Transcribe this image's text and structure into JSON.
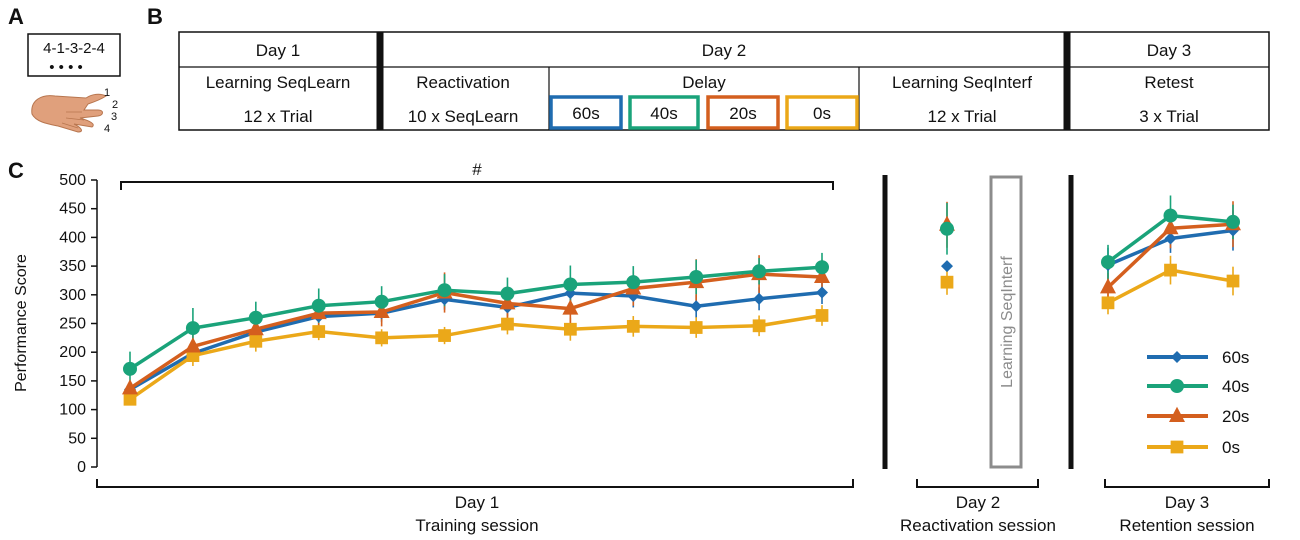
{
  "panel_a": {
    "letter": "A",
    "sequence": "4-1-3-2-4",
    "dots": "• • • •",
    "finger_numbers": [
      "1",
      "2",
      "3",
      "4"
    ]
  },
  "panel_b": {
    "letter": "B",
    "day1": {
      "header": "Day 1",
      "row1": "Learning SeqLearn",
      "row2": "12 x Trial"
    },
    "day2": {
      "header": "Day 2",
      "reactivation": {
        "row1": "Reactivation",
        "row2": "10 x SeqLearn"
      },
      "delay": {
        "label": "Delay",
        "boxes": [
          {
            "label": "60s",
            "color": "#1f6cb0"
          },
          {
            "label": "40s",
            "color": "#1aa37a"
          },
          {
            "label": "20s",
            "color": "#d45f1e"
          },
          {
            "label": "0s",
            "color": "#eba819"
          }
        ]
      },
      "interf": {
        "row1": "Learning SeqInterf",
        "row2": "12 x Trial"
      }
    },
    "day3": {
      "header": "Day 3",
      "row1": "Retest",
      "row2": "3 x Trial"
    }
  },
  "panel_c": {
    "letter": "C",
    "significance_mark": "#",
    "interf_box_label": "Learning SeqInterf",
    "brackets": [
      {
        "line1": "Day 1",
        "line2": "Training session"
      },
      {
        "line1": "Day 2",
        "line2": "Reactivation session"
      },
      {
        "line1": "Day 3",
        "line2": "Retention session"
      }
    ]
  },
  "chart_data": {
    "type": "line",
    "ylabel": "Performance Score",
    "ylim": [
      0,
      500
    ],
    "yticks": [
      0,
      50,
      100,
      150,
      200,
      250,
      300,
      350,
      400,
      450,
      500
    ],
    "segments": {
      "training": {
        "trials": 12
      },
      "reactivation": {
        "trials": 1
      },
      "retention": {
        "trials": 3
      }
    },
    "series": [
      {
        "name": "60s",
        "color": "#1f6cb0",
        "marker": "diamond",
        "training": [
          135,
          198,
          235,
          262,
          268,
          292,
          278,
          303,
          298,
          280,
          293,
          304
        ],
        "training_err": [
          15,
          15,
          15,
          15,
          15,
          18,
          15,
          20,
          20,
          20,
          20,
          20
        ],
        "reactivation": [
          350
        ],
        "reactivation_err": [
          0
        ],
        "retention": [
          352,
          398,
          412
        ],
        "retention_err": [
          30,
          25,
          35
        ]
      },
      {
        "name": "40s",
        "color": "#1aa37a",
        "marker": "circle",
        "training": [
          171,
          242,
          260,
          281,
          288,
          308,
          302,
          318,
          322,
          331,
          341,
          348
        ],
        "training_err": [
          30,
          35,
          28,
          30,
          27,
          28,
          28,
          33,
          28,
          30,
          23,
          25
        ],
        "reactivation": [
          415
        ],
        "reactivation_err": [
          45
        ],
        "retention": [
          357,
          438,
          427
        ],
        "retention_err": [
          30,
          35,
          30
        ]
      },
      {
        "name": "20s",
        "color": "#d45f1e",
        "marker": "triangle",
        "training": [
          137,
          210,
          240,
          268,
          270,
          304,
          285,
          276,
          311,
          322,
          336,
          331
        ],
        "training_err": [
          12,
          25,
          25,
          25,
          25,
          35,
          30,
          30,
          30,
          40,
          33,
          30
        ],
        "reactivation": [
          422
        ],
        "reactivation_err": [
          40
        ],
        "retention": [
          313,
          416,
          423
        ],
        "retention_err": [
          25,
          35,
          40
        ]
      },
      {
        "name": "0s",
        "color": "#eba819",
        "marker": "square",
        "training": [
          118,
          194,
          219,
          236,
          225,
          229,
          249,
          240,
          245,
          243,
          246,
          264
        ],
        "training_err": [
          10,
          18,
          18,
          15,
          15,
          15,
          18,
          20,
          18,
          18,
          18,
          18
        ],
        "reactivation": [
          322
        ],
        "reactivation_err": [
          22
        ],
        "retention": [
          286,
          343,
          324
        ],
        "retention_err": [
          20,
          25,
          25
        ]
      }
    ]
  }
}
